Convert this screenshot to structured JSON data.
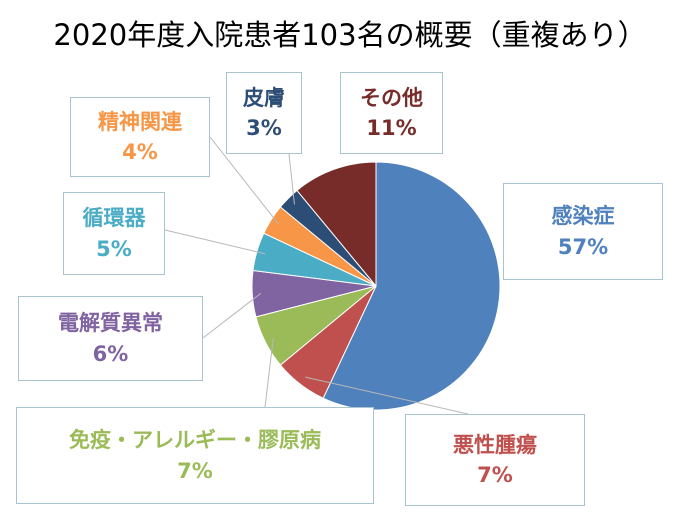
{
  "chart_data": {
    "type": "pie",
    "title": "2020年度入院患者103名の概要（重複あり）",
    "slices": [
      {
        "label": "感染症",
        "value": 57,
        "pct_label": "57%",
        "color": "#4f81bd"
      },
      {
        "label": "悪性腫瘍",
        "value": 7,
        "pct_label": "7%",
        "color": "#c0504d"
      },
      {
        "label": "免疫・アレルギー・膠原病",
        "value": 7,
        "pct_label": "7%",
        "color": "#9bbb59"
      },
      {
        "label": "電解質異常",
        "value": 6,
        "pct_label": "6%",
        "color": "#8064a2"
      },
      {
        "label": "循環器",
        "value": 5,
        "pct_label": "5%",
        "color": "#4bacc6"
      },
      {
        "label": "精神関連",
        "value": 4,
        "pct_label": "4%",
        "color": "#f79646"
      },
      {
        "label": "皮膚",
        "value": 3,
        "pct_label": "3%",
        "color": "#2c4d75"
      },
      {
        "label": "その他",
        "value": 11,
        "pct_label": "11%",
        "color": "#772c2a"
      }
    ],
    "legend": "none"
  }
}
